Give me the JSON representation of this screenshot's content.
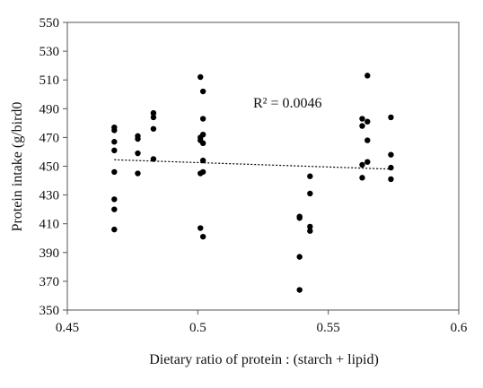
{
  "chart_data": {
    "type": "scatter",
    "title": "",
    "xlabel": "Dietary ratio of protein : (starch + lipid)",
    "ylabel": "Protein intake (g/bird0",
    "xlim": [
      0.45,
      0.6
    ],
    "ylim": [
      350,
      550
    ],
    "xticks": [
      "0.45",
      "0.5",
      "0.55",
      "0.6"
    ],
    "yticks": [
      "350",
      "370",
      "390",
      "410",
      "430",
      "450",
      "470",
      "490",
      "510",
      "530",
      "550"
    ],
    "grid": false,
    "legend": "none",
    "annotation": "R² = 0.0046",
    "point_color": "#000000",
    "trendline": {
      "style": "dotted",
      "x": [
        0.468,
        0.574
      ],
      "y": [
        454.5,
        448
      ]
    },
    "points": [
      [
        0.468,
        477
      ],
      [
        0.468,
        475
      ],
      [
        0.468,
        467
      ],
      [
        0.468,
        461
      ],
      [
        0.468,
        446
      ],
      [
        0.468,
        427
      ],
      [
        0.468,
        420
      ],
      [
        0.468,
        406
      ],
      [
        0.477,
        471
      ],
      [
        0.477,
        469
      ],
      [
        0.477,
        459
      ],
      [
        0.477,
        445
      ],
      [
        0.483,
        487
      ],
      [
        0.483,
        484
      ],
      [
        0.483,
        476
      ],
      [
        0.483,
        455
      ],
      [
        0.501,
        512
      ],
      [
        0.501,
        470
      ],
      [
        0.501,
        468
      ],
      [
        0.501,
        445
      ],
      [
        0.501,
        407
      ],
      [
        0.502,
        502
      ],
      [
        0.502,
        483
      ],
      [
        0.502,
        472
      ],
      [
        0.502,
        466
      ],
      [
        0.502,
        454
      ],
      [
        0.502,
        446
      ],
      [
        0.502,
        401
      ],
      [
        0.539,
        415
      ],
      [
        0.539,
        414
      ],
      [
        0.539,
        387
      ],
      [
        0.539,
        364
      ],
      [
        0.543,
        443
      ],
      [
        0.543,
        431
      ],
      [
        0.543,
        408
      ],
      [
        0.543,
        405
      ],
      [
        0.563,
        483
      ],
      [
        0.563,
        478
      ],
      [
        0.563,
        451
      ],
      [
        0.563,
        442
      ],
      [
        0.565,
        513
      ],
      [
        0.565,
        481
      ],
      [
        0.565,
        468
      ],
      [
        0.565,
        453
      ],
      [
        0.574,
        484
      ],
      [
        0.574,
        458
      ],
      [
        0.574,
        449
      ],
      [
        0.574,
        441
      ]
    ]
  }
}
